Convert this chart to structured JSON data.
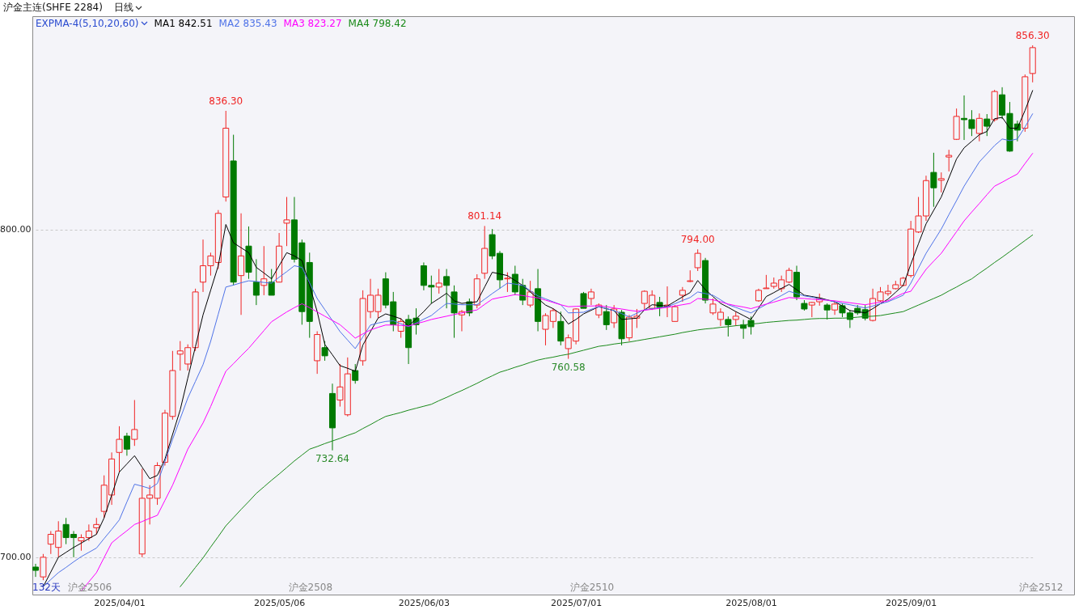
{
  "chart_data": {
    "type": "candlestick",
    "title": "沪金主连(SHFE 2284)",
    "subtitle": "日线",
    "legend_title": "EXPMA-4(5,10,20,60)",
    "categories": [
      null,
      null,
      null,
      null,
      null,
      null,
      null,
      null,
      null,
      null,
      null,
      "2025/04/01",
      null,
      null,
      null,
      null,
      null,
      null,
      null,
      null,
      null,
      null,
      null,
      null,
      null,
      null,
      null,
      null,
      null,
      null,
      null,
      null,
      "2025/05/06",
      null,
      null,
      null,
      null,
      null,
      null,
      null,
      null,
      null,
      null,
      null,
      null,
      null,
      null,
      null,
      null,
      null,
      null,
      "2025/06/03",
      null,
      null,
      null,
      null,
      null,
      null,
      null,
      null,
      null,
      null,
      null,
      null,
      null,
      null,
      null,
      null,
      null,
      null,
      null,
      "2025/07/01",
      null,
      null,
      null,
      null,
      null,
      null,
      null,
      null,
      null,
      null,
      null,
      null,
      null,
      null,
      null,
      null,
      null,
      null,
      null,
      null,
      null,
      null,
      "2025/08/01",
      null,
      null,
      null,
      null,
      null,
      null,
      null,
      null,
      null,
      null,
      null,
      null,
      null,
      null,
      null,
      null,
      null,
      null,
      null,
      null,
      "2025/09/01",
      null,
      null,
      null,
      null,
      null,
      null,
      null,
      null,
      null,
      null,
      null,
      null,
      null,
      null,
      null,
      null
    ],
    "ylim": [
      688.6,
      865.2
    ],
    "yticks": [
      {
        "value": 700,
        "label": "700.00"
      },
      {
        "value": 800,
        "label": "800.00"
      }
    ],
    "grid": "y",
    "legend": "top left",
    "ohlc": [
      [
        697,
        698,
        694,
        696
      ],
      [
        694,
        701,
        693,
        700
      ],
      [
        704,
        708,
        701,
        707
      ],
      [
        703,
        711,
        700,
        708
      ],
      [
        710,
        712,
        704,
        706
      ],
      [
        707,
        708,
        700,
        706
      ],
      [
        705,
        707,
        702,
        706
      ],
      [
        706,
        710,
        705,
        708
      ],
      [
        709,
        712,
        707,
        710
      ],
      [
        714,
        725,
        712,
        722
      ],
      [
        719,
        732,
        716,
        730
      ],
      [
        732,
        740,
        726,
        736
      ],
      [
        737,
        738,
        731,
        733
      ],
      [
        736,
        748,
        734,
        739
      ],
      [
        701,
        727,
        700,
        718
      ],
      [
        718,
        722,
        710,
        719
      ],
      [
        718,
        729,
        716,
        728
      ],
      [
        729,
        745,
        728,
        744
      ],
      [
        743,
        763,
        742,
        757
      ],
      [
        762,
        766,
        757,
        763
      ],
      [
        759,
        765,
        757,
        764
      ],
      [
        764,
        782,
        763,
        781
      ],
      [
        784,
        797,
        781,
        789
      ],
      [
        789,
        793,
        786,
        792
      ],
      [
        790,
        806,
        788,
        805
      ],
      [
        810,
        836.3,
        808.6,
        831
      ],
      [
        821,
        829,
        783,
        784
      ],
      [
        786,
        805,
        774,
        792
      ],
      [
        795,
        801,
        785,
        787
      ],
      [
        784,
        791,
        777,
        780
      ],
      [
        783,
        795,
        780,
        785
      ],
      [
        784,
        788,
        780,
        780
      ],
      [
        784,
        799,
        784,
        795
      ],
      [
        802,
        810,
        795,
        803
      ],
      [
        803,
        810,
        790,
        791
      ],
      [
        796,
        797,
        771,
        775
      ],
      [
        790,
        793,
        767,
        772
      ],
      [
        760,
        769,
        756,
        768
      ],
      [
        764,
        766,
        760,
        761.5
      ],
      [
        750,
        753,
        732.64,
        739.5
      ],
      [
        748,
        759,
        746,
        752
      ],
      [
        743.5,
        761,
        743,
        756
      ],
      [
        757,
        759,
        753,
        754
      ],
      [
        760,
        781.5,
        758.5,
        779
      ],
      [
        775,
        785,
        773,
        780
      ],
      [
        775,
        782,
        773,
        780
      ],
      [
        785,
        787,
        776,
        777
      ],
      [
        778,
        781,
        769,
        771
      ],
      [
        769,
        773,
        767,
        772
      ],
      [
        772.6,
        774,
        759,
        764
      ],
      [
        773,
        776,
        768,
        771
      ],
      [
        789,
        790,
        781.5,
        783
      ],
      [
        783,
        786,
        777.5,
        782.5
      ],
      [
        782.5,
        788,
        780.5,
        783.7
      ],
      [
        785.7,
        788,
        776,
        783
      ],
      [
        781,
        783,
        767,
        774.6
      ],
      [
        774,
        775.5,
        769,
        775
      ],
      [
        778,
        779,
        773.6,
        774.6
      ],
      [
        777,
        786.4,
        776,
        785
      ],
      [
        786.7,
        801.14,
        785,
        794.3
      ],
      [
        798.5,
        800.2,
        791,
        792
      ],
      [
        792.8,
        793.5,
        782,
        784.7
      ],
      [
        785,
        787,
        781,
        785.2
      ],
      [
        786.4,
        789,
        780,
        781
      ],
      [
        783,
        785,
        777,
        778.5
      ],
      [
        777,
        784.4,
        776.3,
        781
      ],
      [
        782,
        788,
        769,
        772
      ],
      [
        769.6,
        774.5,
        764.7,
        773.8
      ],
      [
        772,
        776,
        770,
        775.3
      ],
      [
        772,
        775,
        764.7,
        766
      ],
      [
        763.7,
        768,
        760.58,
        767
      ],
      [
        766,
        776,
        765,
        775.8
      ],
      [
        780.5,
        781,
        776,
        776
      ],
      [
        779,
        782,
        777,
        781
      ],
      [
        774,
        777.5,
        773,
        777
      ],
      [
        775,
        777,
        769.4,
        771
      ],
      [
        771.6,
        777,
        770,
        775.8
      ],
      [
        774.8,
        775.5,
        764.7,
        766.7
      ],
      [
        767,
        774,
        766,
        773.3
      ],
      [
        773,
        775.8,
        770,
        773.6
      ],
      [
        777.5,
        781.5,
        775.5,
        781.2
      ],
      [
        776,
        781.5,
        775.5,
        780
      ],
      [
        777.8,
        779.5,
        773.6,
        776.3
      ],
      [
        776.5,
        782.7,
        773.3,
        777
      ],
      [
        772,
        777,
        772,
        776.5
      ],
      [
        780,
        782.5,
        778,
        781.5
      ],
      [
        784.2,
        787.6,
        784,
        784.4
      ],
      [
        788.4,
        794,
        787.4,
        792.8
      ],
      [
        790.6,
        791.4,
        777.5,
        778.5
      ],
      [
        774.6,
        779,
        774,
        777.3
      ],
      [
        772.6,
        776,
        770.6,
        774.8
      ],
      [
        772.6,
        773.5,
        767.4,
        771
      ],
      [
        772.6,
        775,
        770.6,
        773.6
      ],
      [
        771,
        772.5,
        766.7,
        769.9
      ],
      [
        772.3,
        773.5,
        768,
        770.4
      ],
      [
        778.3,
        782,
        778,
        781.5
      ],
      [
        782,
        786.2,
        782,
        782.2
      ],
      [
        782.7,
        785.4,
        782,
        783.7
      ],
      [
        782,
        786,
        781,
        784.7
      ],
      [
        784,
        788.4,
        783.7,
        787.6
      ],
      [
        787,
        789,
        778.5,
        779.5
      ],
      [
        777.5,
        778.5,
        775.3,
        775.8
      ],
      [
        777,
        778,
        773.3,
        777.8
      ],
      [
        778,
        780.5,
        776.8,
        779
      ],
      [
        777,
        777.5,
        772.6,
        775.5
      ],
      [
        775.5,
        778,
        774,
        777.3
      ],
      [
        776.8,
        777.5,
        773.3,
        774.6
      ],
      [
        774.6,
        775.5,
        770,
        772.6
      ],
      [
        776,
        777,
        774,
        774.6
      ],
      [
        775.6,
        777,
        772.3,
        773
      ],
      [
        772.3,
        782,
        772,
        779
      ],
      [
        778.3,
        782.5,
        778,
        781
      ],
      [
        780.5,
        783.2,
        779.8,
        781.2
      ],
      [
        782,
        784.4,
        781.8,
        783.2
      ],
      [
        783,
        785.6,
        782.7,
        785.2
      ],
      [
        786,
        802.7,
        785.4,
        800.2
      ],
      [
        799.3,
        810,
        799,
        804.2
      ],
      [
        804.2,
        816.5,
        802.7,
        815
      ],
      [
        817.5,
        823.5,
        807,
        812.8
      ],
      [
        815.1,
        817.5,
        811.4,
        815.6
      ],
      [
        822.2,
        824.4,
        817.8,
        822.7
      ],
      [
        827.6,
        837,
        827.4,
        834.6
      ],
      [
        834,
        841,
        827.4,
        833.6
      ],
      [
        833.6,
        836.5,
        828.6,
        830.9
      ],
      [
        829.4,
        835.5,
        827,
        834
      ],
      [
        833.8,
        835.3,
        828.6,
        831.6
      ],
      [
        833.6,
        842.7,
        833,
        842.2
      ],
      [
        841.2,
        843.5,
        833.8,
        835
      ],
      [
        835.5,
        839,
        823.8,
        824
      ],
      [
        832.3,
        833.3,
        827,
        830.4
      ],
      [
        831,
        847.4,
        829.9,
        846.7
      ],
      [
        847.7,
        856.3,
        845,
        855.6
      ]
    ],
    "series": [
      {
        "name": "MA1 842.51",
        "type": "line",
        "color": "#000000",
        "values": [
          null,
          691,
          695.5,
          700,
          701.5,
          703,
          704.3,
          705.7,
          707,
          712,
          719,
          726,
          728.5,
          731,
          727.5,
          724,
          725,
          730,
          737.5,
          745,
          754.7,
          764.3,
          774,
          781.5,
          789,
          801.6,
          796,
          794.5,
          793,
          788.5,
          786.8,
          785,
          789,
          793,
          792,
          790.6,
          783,
          775,
          765,
          761.8,
          758.5,
          757.7,
          756.8,
          764.8,
          768.9,
          773,
          774.3,
          773.6,
          772.8,
          770.6,
          772.8,
          775,
          777.5,
          779,
          780.6,
          778.3,
          777.5,
          777.8,
          778,
          782.5,
          787,
          786.5,
          786,
          784.5,
          783,
          781,
          779,
          777,
          775.9,
          774.3,
          771.2,
          772.6,
          774.3,
          775.4,
          776.5,
          775.9,
          775.3,
          772.6,
          772.8,
          773,
          775.5,
          777.1,
          776.9,
          776.7,
          778.1,
          779.5,
          780.8,
          784.5,
          781.7,
          779.6,
          777.5,
          776.3,
          775,
          773.8,
          772.6,
          776.1,
          779.6,
          780.8,
          782.1,
          783.3,
          781.7,
          780,
          779.6,
          779.2,
          778.6,
          778,
          776.7,
          775.3,
          775,
          774.6,
          775.9,
          777.4,
          778.8,
          780.9,
          783,
          789.5,
          795.7,
          801.8,
          805.9,
          810,
          815.8,
          821.6,
          825,
          827,
          829,
          830,
          833.9,
          834.3,
          831,
          831,
          836.4,
          842.5
        ]
      },
      {
        "name": "MA2 835.43",
        "type": "line",
        "color": "#4f73e8",
        "values": [
          null,
          691,
          693.2,
          695.3,
          696.9,
          698.6,
          700.2,
          701.5,
          702.8,
          705.7,
          708.5,
          711.4,
          716.9,
          722.3,
          721.7,
          721,
          722.5,
          729.3,
          736,
          742.3,
          748.6,
          753.7,
          758.8,
          765.9,
          774.2,
          782.5,
          783.1,
          783.8,
          784.4,
          784.2,
          783.9,
          783.7,
          785.5,
          787.2,
          789,
          788.5,
          783.8,
          779,
          775.6,
          772.3,
          768.9,
          766.3,
          763.7,
          767.3,
          770.9,
          771.5,
          772,
          772.2,
          771.3,
          770.4,
          771.5,
          772.7,
          773.8,
          775.7,
          777.5,
          777.3,
          777.1,
          777.1,
          777.1,
          778.8,
          780.5,
          782.1,
          783.7,
          783.4,
          783,
          781.4,
          779.8,
          778.9,
          778,
          777.1,
          774.6,
          774.7,
          774.8,
          775.7,
          776.5,
          775.9,
          775.3,
          774.4,
          773.4,
          774.5,
          775.6,
          775.9,
          776.2,
          776.5,
          777.4,
          778.4,
          779.3,
          781,
          780.5,
          780,
          778.6,
          777.1,
          776.3,
          775.4,
          774.6,
          775.9,
          777.2,
          778.6,
          779.9,
          781.2,
          780.5,
          779.8,
          779.4,
          778.9,
          778.5,
          778,
          777.5,
          777.1,
          776.6,
          776.1,
          776.7,
          777.4,
          778,
          779,
          780,
          783.7,
          788.3,
          792.8,
          796.5,
          800.2,
          804.6,
          808.9,
          813.3,
          817,
          820.7,
          823.2,
          825.7,
          827.7,
          827.2,
          827.7,
          831.4,
          835.4
        ]
      },
      {
        "name": "MA3 823.27",
        "type": "line",
        "color": "#ff00ff",
        "values": [
          null,
          null,
          null,
          null,
          null,
          null,
          689.7,
          692.5,
          695.3,
          699.9,
          704.4,
          706.3,
          708.1,
          710,
          710.9,
          711.9,
          712.8,
          717.4,
          722,
          727.5,
          733,
          737,
          741,
          746,
          751.5,
          756.8,
          759.1,
          761.5,
          763.8,
          766.5,
          769.2,
          771.9,
          773.4,
          774.9,
          776.2,
          777.4,
          776.2,
          774.9,
          773.6,
          772.3,
          771,
          769,
          766.9,
          768.2,
          769.4,
          770.2,
          770.9,
          770.9,
          770.8,
          770.6,
          771.3,
          771.9,
          772.6,
          773.1,
          773.6,
          774.1,
          774.6,
          775.1,
          775.5,
          777.2,
          778.8,
          779.3,
          779.7,
          780.2,
          779.9,
          779.5,
          779.2,
          778.5,
          777.8,
          777.1,
          776.5,
          776.6,
          776.7,
          776.7,
          776.8,
          776.5,
          776.1,
          775.8,
          775.4,
          775.1,
          775.4,
          775.7,
          776,
          776.3,
          776.7,
          777.1,
          777.5,
          779,
          778.8,
          778.6,
          778,
          777.3,
          776.8,
          776.4,
          775.9,
          776.6,
          777.3,
          777.9,
          778.6,
          779.3,
          779.1,
          779,
          778.8,
          778.6,
          778.5,
          778.3,
          778,
          777.7,
          777.4,
          777.1,
          777.5,
          777.9,
          778.3,
          779.5,
          780.6,
          781.2,
          784.6,
          787.9,
          790.4,
          792.8,
          796.1,
          799.4,
          802.7,
          805.4,
          808,
          810.7,
          813.3,
          814.5,
          815.8,
          817,
          820.2,
          823.3
        ]
      },
      {
        "name": "MA4 798.42",
        "type": "line",
        "color": "#1a8a1a",
        "values": [
          null,
          null,
          null,
          null,
          null,
          null,
          null,
          null,
          null,
          null,
          null,
          null,
          null,
          null,
          null,
          null,
          null,
          null,
          null,
          691,
          693.9,
          696.9,
          699.8,
          703.1,
          706.3,
          709.6,
          712.1,
          714.6,
          717,
          719.5,
          721.5,
          723.5,
          725.4,
          727.4,
          729.4,
          731.2,
          733,
          733.8,
          734.7,
          735.5,
          736.3,
          737.2,
          738,
          739.3,
          740.5,
          741.8,
          743,
          743.6,
          744.2,
          744.9,
          745.5,
          746.1,
          746.7,
          747.8,
          748.8,
          749.9,
          750.9,
          752,
          753.1,
          754.3,
          755.4,
          756.5,
          757.2,
          758,
          758.7,
          759.5,
          760.2,
          760.7,
          761.1,
          761.6,
          762,
          762.6,
          763.2,
          763.8,
          764.4,
          764.7,
          765.1,
          765.4,
          765.7,
          766.1,
          766.5,
          766.9,
          767.3,
          767.7,
          768.1,
          768.6,
          769,
          769.4,
          769.7,
          769.9,
          770.2,
          770.4,
          770.7,
          770.9,
          771.2,
          771.4,
          771.7,
          771.9,
          772.1,
          772.3,
          772.4,
          772.6,
          772.8,
          772.9,
          772.9,
          773,
          773,
          773.1,
          773.3,
          773.5,
          773.6,
          773.8,
          774.2,
          774.6,
          775,
          776,
          777,
          778,
          779,
          780,
          781.3,
          782.5,
          783.8,
          785,
          786.7,
          788.3,
          790,
          791.6,
          793.3,
          795,
          796.7,
          798.4
        ]
      }
    ],
    "annotations": [
      {
        "text": "836.30",
        "y": 836.3
      },
      {
        "text": "732.64",
        "y": 732.64
      },
      {
        "text": "801.14",
        "y": 801.14
      },
      {
        "text": "760.58",
        "y": 760.58
      },
      {
        "text": "794.00",
        "y": 794
      },
      {
        "text": "856.30",
        "y": 856.3
      },
      "132天",
      "沪金2506",
      "沪金2508",
      "沪金2510",
      "沪金2512"
    ]
  }
}
